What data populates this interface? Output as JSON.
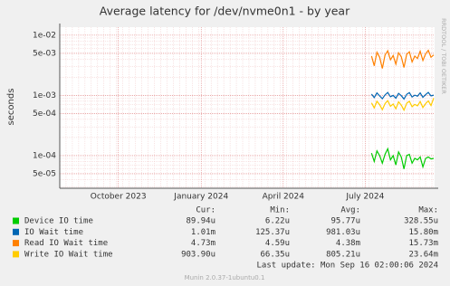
{
  "chart_data": {
    "type": "line",
    "title": "Average latency for /dev/nvme0n1 - by year",
    "y_label": "seconds",
    "log_scale": true,
    "grid": true,
    "ylim": [
      2.87e-05,
      0.0136
    ],
    "yticks": [
      {
        "value": 0.01,
        "label": "1e-02"
      },
      {
        "value": 0.005,
        "label": "5e-03"
      },
      {
        "value": 0.001,
        "label": "1e-03"
      },
      {
        "value": 0.0005,
        "label": "5e-04"
      },
      {
        "value": 0.0001,
        "label": "1e-04"
      },
      {
        "value": 5e-05,
        "label": "5e-05"
      }
    ],
    "xlim": [
      "2023-07-28",
      "2024-09-16"
    ],
    "xticks": [
      {
        "value": "2023-10",
        "label": "October 2023"
      },
      {
        "value": "2024-01",
        "label": "January 2024"
      },
      {
        "value": "2024-04",
        "label": "April 2024"
      },
      {
        "value": "2024-07",
        "label": "July 2024"
      }
    ],
    "x": [
      "2024-07-08",
      "2024-07-11",
      "2024-07-14",
      "2024-07-17",
      "2024-07-20",
      "2024-07-23",
      "2024-07-26",
      "2024-07-29",
      "2024-08-01",
      "2024-08-04",
      "2024-08-07",
      "2024-08-10",
      "2024-08-13",
      "2024-08-16",
      "2024-08-19",
      "2024-08-22",
      "2024-08-25",
      "2024-08-28",
      "2024-08-31",
      "2024-09-03",
      "2024-09-06",
      "2024-09-09",
      "2024-09-12",
      "2024-09-15"
    ],
    "legend_columns": [
      "Cur:",
      "Min:",
      "Avg:",
      "Max:"
    ],
    "series": [
      {
        "name": "Device IO time",
        "color": "#00cc00",
        "stats": [
          "89.94u",
          "6.22u",
          "95.77u",
          "328.55u"
        ],
        "values": [
          0.00011,
          8e-05,
          0.00012,
          0.0001,
          7.5e-05,
          0.000105,
          0.00013,
          8.5e-05,
          0.0001,
          7e-05,
          0.000115,
          9.5e-05,
          6e-05,
          0.0001,
          0.000105,
          7.5e-05,
          9e-05,
          8.5e-05,
          9.5e-05,
          6.5e-05,
          9e-05,
          9.5e-05,
          8.8e-05,
          9e-05
        ]
      },
      {
        "name": "IO Wait time",
        "color": "#0066b3",
        "stats": [
          "1.01m",
          "125.37u",
          "981.03u",
          "15.80m"
        ],
        "values": [
          0.00105,
          0.00092,
          0.0011,
          0.00098,
          0.00088,
          0.00102,
          0.00112,
          0.00095,
          0.001,
          0.0009,
          0.00108,
          0.00099,
          0.00087,
          0.00104,
          0.00111,
          0.00094,
          0.00101,
          0.00097,
          0.0011,
          0.00093,
          0.00103,
          0.00112,
          0.00098,
          0.00101
        ]
      },
      {
        "name": "Read IO Wait time",
        "color": "#ff8000",
        "stats": [
          "4.73m",
          "4.59u",
          "4.38m",
          "15.73m"
        ],
        "values": [
          0.0045,
          0.0031,
          0.0052,
          0.0043,
          0.0028,
          0.0047,
          0.0055,
          0.0039,
          0.0046,
          0.0033,
          0.0051,
          0.0044,
          0.0029,
          0.0048,
          0.0053,
          0.0036,
          0.0045,
          0.0041,
          0.0054,
          0.0038,
          0.0049,
          0.0056,
          0.0043,
          0.0047
        ]
      },
      {
        "name": "Write IO Wait time",
        "color": "#ffcc00",
        "stats": [
          "903.90u",
          "66.35u",
          "805.21u",
          "23.64m"
        ],
        "values": [
          0.00075,
          0.00062,
          0.0008,
          0.0007,
          0.00058,
          0.00073,
          0.00082,
          0.00066,
          0.00072,
          0.0006,
          0.00078,
          0.00069,
          0.00057,
          0.00074,
          0.0008,
          0.00065,
          0.00071,
          0.00067,
          0.00079,
          0.00063,
          0.00073,
          0.00081,
          0.00068,
          0.0009
        ]
      }
    ],
    "last_update": "Last update: Mon Sep 16 02:00:06 2024",
    "footer": "Munin 2.0.37-1ubuntu0.1",
    "side_text": "RRDTOOL / TOBI OETIKER"
  }
}
